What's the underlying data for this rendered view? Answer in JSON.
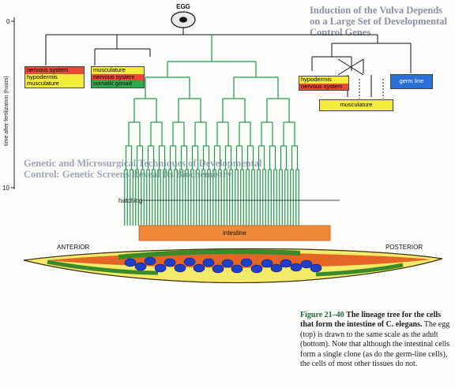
{
  "figure": {
    "egg_label": "EGG",
    "axis_label": "time after fertilization (hours)",
    "tick_0": "0",
    "tick_10": "10",
    "hatching_label": "hatching",
    "intestine_label": "intestine",
    "anterior_label": "ANTERIOR",
    "posterior_label": "POSTERIOR",
    "legend_a": [
      "nervous system",
      "hypodermis",
      "musculature"
    ],
    "legend_b": [
      "musculature",
      "nervous system",
      "somatic gonad"
    ],
    "legend_c": [
      "hypodermis",
      "nervous system"
    ],
    "legend_d": [
      "germ line"
    ],
    "legend_e": [
      "musculature"
    ],
    "colors": {
      "lineage_green": "#1f9a4a",
      "intestine_orange": "#f08a3a",
      "nervous_red": "#e84a3a",
      "hypodermis_yellow": "#f4ec3c",
      "gonad_green": "#2fa84a",
      "germline_blue": "#2a6fd8",
      "nucleus_blue": "#1f3fc8"
    }
  },
  "caption": {
    "fig_number": "Figure 21–40",
    "title": "The lineage tree for the cells that form the intestine of C. elegans.",
    "body": "The egg (top) is drawn to the same scale as the adult (bottom). Note that although the intestinal cells form a single clone (as do the germ-line cells), the cells of most other tissues do not."
  },
  "background_text": {
    "heading_right": "Induction of the Vulva Depends on a Large Set of Developmental Control Genes",
    "heading_left": "Genetic and Microsurgical Techniques of Developmental Control: Genetic Screens Reveal Its Biochemistry"
  }
}
